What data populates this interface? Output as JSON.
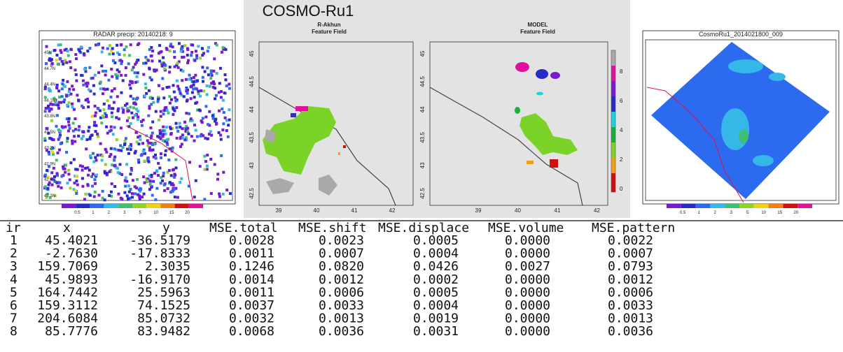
{
  "radar_panel": {
    "title": "RADAR precip: 20140218: 9",
    "lat_labels": [
      "45N",
      "44.7N",
      "44.4N",
      "44.1N",
      "43.8N",
      "43.5N",
      "43.2N",
      "42.9N",
      "42.6N",
      "42.3N"
    ],
    "colorbar_labels": [
      "0.5",
      "1",
      "2",
      "3",
      "5",
      "10",
      "15",
      "20"
    ]
  },
  "feature_panel": {
    "title": "COSMO-Ru1",
    "left_title": [
      "R-Akhun",
      "Feature Field"
    ],
    "right_title": [
      "MODEL",
      "Feature Field"
    ],
    "yticks": [
      "42.5",
      "43",
      "43.5",
      "44",
      "44.5",
      "45"
    ],
    "xticks": [
      "39",
      "40",
      "41",
      "42"
    ],
    "colorbar_ticks": [
      "0",
      "2",
      "4",
      "6",
      "8"
    ]
  },
  "model_panel": {
    "title": "CosmoRu1_2014021800_009",
    "colorbar_labels": [
      "0.5",
      "1",
      "2",
      "3",
      "5",
      "10",
      "15",
      "20"
    ]
  },
  "table": {
    "columns": [
      "ir",
      "x",
      "y",
      "MSE.total",
      "MSE.shift",
      "MSE.displace",
      "MSE.volume",
      "MSE.pattern"
    ],
    "rows": [
      [
        "1",
        "45.4021",
        "-36.5179",
        "0.0028",
        "0.0023",
        "0.0005",
        "0.0000",
        "0.0022"
      ],
      [
        "2",
        "-2.7630",
        "-17.8333",
        "0.0011",
        "0.0007",
        "0.0004",
        "0.0000",
        "0.0007"
      ],
      [
        "3",
        "159.7069",
        "2.3035",
        "0.1246",
        "0.0820",
        "0.0426",
        "0.0027",
        "0.0793"
      ],
      [
        "4",
        "45.9893",
        "-16.9170",
        "0.0014",
        "0.0012",
        "0.0002",
        "0.0000",
        "0.0012"
      ],
      [
        "5",
        "164.7442",
        "25.5963",
        "0.0011",
        "0.0006",
        "0.0005",
        "0.0000",
        "0.0006"
      ],
      [
        "6",
        "159.3112",
        "74.1525",
        "0.0037",
        "0.0033",
        "0.0004",
        "0.0000",
        "0.0033"
      ],
      [
        "7",
        "204.6084",
        "85.0732",
        "0.0032",
        "0.0013",
        "0.0019",
        "0.0000",
        "0.0013"
      ],
      [
        "8",
        "85.7776",
        "83.9482",
        "0.0068",
        "0.0036",
        "0.0031",
        "0.0000",
        "0.0036"
      ]
    ]
  }
}
